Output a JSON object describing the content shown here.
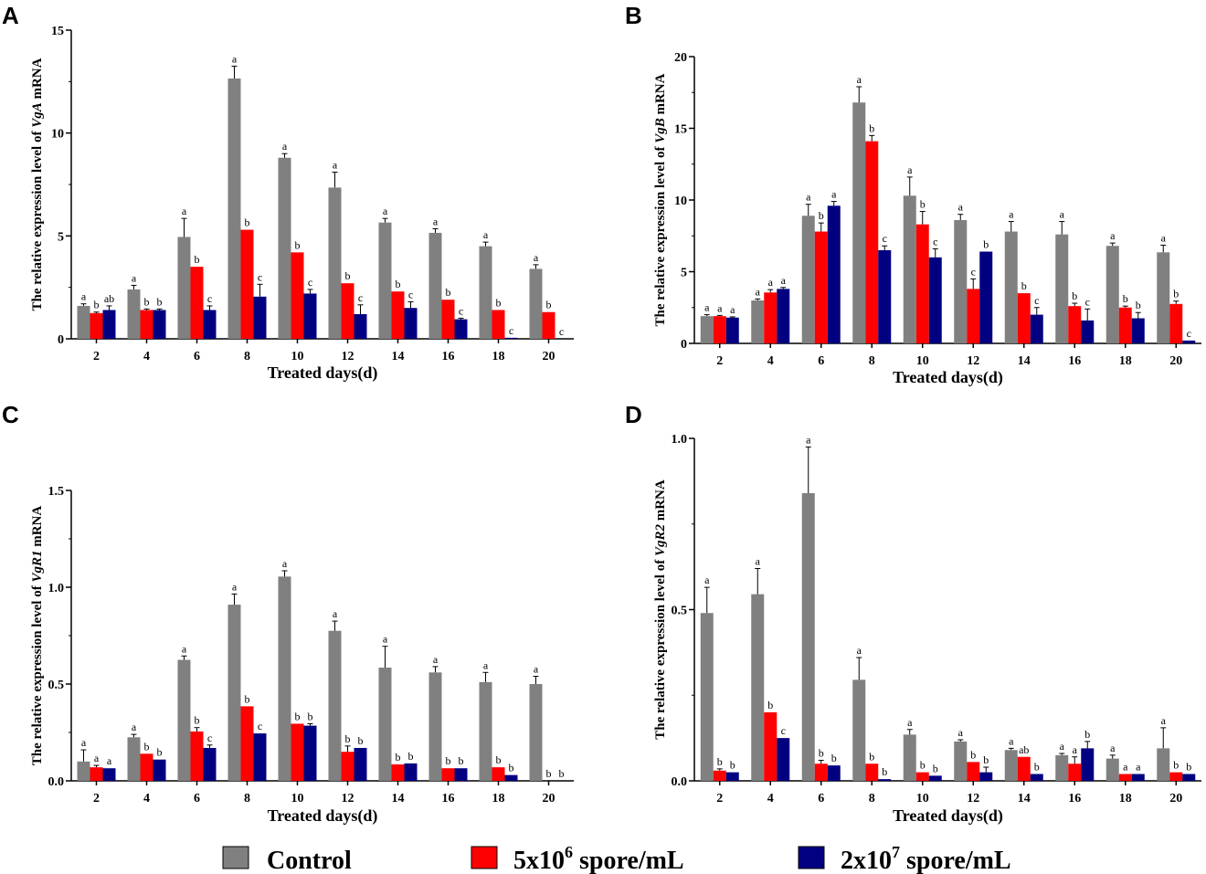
{
  "chart_data": [
    {
      "type": "bar",
      "panel": "A",
      "categories": [
        "2",
        "4",
        "6",
        "8",
        "10",
        "12",
        "14",
        "16",
        "18",
        "20"
      ],
      "xlabel": "Treated days(d)",
      "ylabel_prefix": "The relative expression level of ",
      "ylabel_gene": "VgA",
      "ylabel_suffix": " mRNA",
      "ylim": [
        0,
        15
      ],
      "yticks": [
        0,
        5,
        10,
        15
      ],
      "ytick_labels": [
        "0",
        "5",
        "10",
        "15"
      ],
      "series": [
        {
          "name": "Control",
          "values": [
            1.6,
            2.4,
            4.95,
            12.65,
            8.8,
            7.35,
            5.65,
            5.15,
            4.5,
            3.4
          ],
          "errors": [
            0.1,
            0.2,
            0.9,
            0.6,
            0.2,
            0.75,
            0.2,
            0.2,
            0.2,
            0.2
          ],
          "sig": [
            "a",
            "a",
            "a",
            "a",
            "a",
            "a",
            "a",
            "a",
            "a",
            "a"
          ]
        },
        {
          "name": "5x10^6 spore/mL",
          "values": [
            1.25,
            1.4,
            3.5,
            5.3,
            4.2,
            2.7,
            2.3,
            1.9,
            1.4,
            1.3
          ],
          "errors": [
            0.05,
            0.05,
            0.0,
            0.0,
            0.0,
            0.0,
            0.0,
            0.0,
            0.0,
            0.0
          ],
          "sig": [
            "b",
            "b",
            "b",
            "b",
            "b",
            "b",
            "b",
            "b",
            "b",
            "b"
          ]
        },
        {
          "name": "2x10^7 spore/mL",
          "values": [
            1.4,
            1.4,
            1.4,
            2.05,
            2.2,
            1.2,
            1.5,
            0.95,
            0.05,
            0.0
          ],
          "errors": [
            0.2,
            0.05,
            0.2,
            0.6,
            0.2,
            0.45,
            0.3,
            0.05,
            0.0,
            0.0
          ],
          "sig": [
            "ab",
            "b",
            "c",
            "c",
            "c",
            "c",
            "c",
            "c",
            "c",
            "c"
          ]
        }
      ]
    },
    {
      "type": "bar",
      "panel": "B",
      "categories": [
        "2",
        "4",
        "6",
        "8",
        "10",
        "12",
        "14",
        "16",
        "18",
        "20"
      ],
      "xlabel": "Treated days(d)",
      "ylabel_prefix": "The relative expression level of ",
      "ylabel_gene": "VgB",
      "ylabel_suffix": " mRNA",
      "ylim": [
        0,
        20
      ],
      "yticks": [
        0,
        5,
        10,
        15,
        20
      ],
      "ytick_labels": [
        "0",
        "5",
        "10",
        "15",
        "20"
      ],
      "series": [
        {
          "name": "Control",
          "values": [
            1.9,
            3.0,
            8.9,
            16.8,
            10.3,
            8.6,
            7.8,
            7.6,
            6.8,
            6.35
          ],
          "errors": [
            0.1,
            0.1,
            0.8,
            1.1,
            1.3,
            0.4,
            0.7,
            0.9,
            0.2,
            0.5
          ],
          "sig": [
            "a",
            "a",
            "a",
            "a",
            "a",
            "a",
            "a",
            "a",
            "a",
            "a"
          ]
        },
        {
          "name": "5x10^6 spore/mL",
          "values": [
            1.9,
            3.55,
            7.8,
            14.1,
            8.3,
            3.8,
            3.5,
            2.6,
            2.5,
            2.75
          ],
          "errors": [
            0.05,
            0.2,
            0.6,
            0.4,
            0.9,
            0.7,
            0.0,
            0.2,
            0.1,
            0.2
          ],
          "sig": [
            "a",
            "a",
            "b",
            "b",
            "b",
            "c",
            "b",
            "b",
            "b",
            "b"
          ]
        },
        {
          "name": "2x10^7 spore/mL",
          "values": [
            1.8,
            3.8,
            9.6,
            6.5,
            6.0,
            6.4,
            2.0,
            1.6,
            1.75,
            0.2
          ],
          "errors": [
            0.05,
            0.1,
            0.3,
            0.3,
            0.6,
            0.0,
            0.5,
            0.8,
            0.4,
            0.0
          ],
          "sig": [
            "a",
            "a",
            "a",
            "c",
            "c",
            "b",
            "c",
            "c",
            "b",
            "c"
          ]
        }
      ]
    },
    {
      "type": "bar",
      "panel": "C",
      "categories": [
        "2",
        "4",
        "6",
        "8",
        "10",
        "12",
        "14",
        "16",
        "18",
        "20"
      ],
      "xlabel": "Treated days(d)",
      "ylabel_prefix": "The relative expression level of ",
      "ylabel_gene": "VgR1",
      "ylabel_suffix": " mRNA",
      "ylim": [
        0,
        1.5
      ],
      "yticks": [
        0,
        0.5,
        1.0,
        1.5
      ],
      "ytick_labels": [
        "0.0",
        "0.5",
        "1.0",
        "1.5"
      ],
      "series": [
        {
          "name": "Control",
          "values": [
            0.1,
            0.225,
            0.625,
            0.91,
            1.055,
            0.775,
            0.585,
            0.56,
            0.51,
            0.5
          ],
          "errors": [
            0.06,
            0.015,
            0.02,
            0.055,
            0.03,
            0.05,
            0.11,
            0.03,
            0.05,
            0.04
          ],
          "sig": [
            "a",
            "a",
            "a",
            "a",
            "a",
            "a",
            "a",
            "a",
            "a",
            "a"
          ]
        },
        {
          "name": "5x10^6 spore/mL",
          "values": [
            0.07,
            0.14,
            0.255,
            0.385,
            0.295,
            0.15,
            0.085,
            0.065,
            0.07,
            0.0
          ],
          "errors": [
            0.01,
            0.0,
            0.02,
            0.0,
            0.0,
            0.03,
            0.0,
            0.0,
            0.0,
            0.0
          ],
          "sig": [
            "a",
            "b",
            "b",
            "b",
            "b",
            "b",
            "b",
            "b",
            "b",
            "b"
          ]
        },
        {
          "name": "2x10^7 spore/mL",
          "values": [
            0.065,
            0.11,
            0.17,
            0.245,
            0.285,
            0.17,
            0.09,
            0.065,
            0.03,
            0.0
          ],
          "errors": [
            0.0,
            0.0,
            0.015,
            0.0,
            0.01,
            0.0,
            0.0,
            0.0,
            0.0,
            0.0
          ],
          "sig": [
            "a",
            "b",
            "c",
            "c",
            "b",
            "b",
            "b",
            "b",
            "b",
            "b"
          ]
        }
      ]
    },
    {
      "type": "bar",
      "panel": "D",
      "categories": [
        "2",
        "4",
        "6",
        "8",
        "10",
        "12",
        "14",
        "16",
        "18",
        "20"
      ],
      "xlabel": "Treated days(d)",
      "ylabel_prefix": "The relative expression level of ",
      "ylabel_gene": "VgR2",
      "ylabel_suffix": " mRNA",
      "ylim": [
        0,
        1.0
      ],
      "yticks": [
        0,
        0.5,
        1.0
      ],
      "ytick_labels": [
        "0.0",
        "0.5",
        "1.0"
      ],
      "series": [
        {
          "name": "Control",
          "values": [
            0.49,
            0.545,
            0.84,
            0.295,
            0.135,
            0.115,
            0.09,
            0.075,
            0.065,
            0.095
          ],
          "errors": [
            0.075,
            0.075,
            0.135,
            0.065,
            0.015,
            0.005,
            0.005,
            0.005,
            0.01,
            0.06
          ],
          "sig": [
            "a",
            "a",
            "a",
            "a",
            "a",
            "a",
            "a",
            "a",
            "a",
            "a"
          ]
        },
        {
          "name": "5x10^6 spore/mL",
          "values": [
            0.03,
            0.2,
            0.05,
            0.05,
            0.025,
            0.055,
            0.07,
            0.05,
            0.02,
            0.025
          ],
          "errors": [
            0.005,
            0.0,
            0.01,
            0.0,
            0.0,
            0.0,
            0.0,
            0.02,
            0.0,
            0.0
          ],
          "sig": [
            "b",
            "b",
            "b",
            "b",
            "b",
            "b",
            "ab",
            "a",
            "a",
            "b"
          ]
        },
        {
          "name": "2x10^7 spore/mL",
          "values": [
            0.025,
            0.125,
            0.045,
            0.005,
            0.015,
            0.025,
            0.02,
            0.095,
            0.02,
            0.02
          ],
          "errors": [
            0.0,
            0.0,
            0.0,
            0.0,
            0.0,
            0.015,
            0.0,
            0.02,
            0.0,
            0.0
          ],
          "sig": [
            "b",
            "c",
            "b",
            "b",
            "b",
            "b",
            "b",
            "b",
            "a",
            "b"
          ]
        }
      ]
    }
  ],
  "legend": {
    "items": [
      {
        "label": "Control",
        "label_main": "Control",
        "label_sup": "",
        "label_tail": "",
        "color": "#808080"
      },
      {
        "label": "5x10^6 spore/mL",
        "label_main": "5x10",
        "label_sup": "6",
        "label_tail": " spore/mL",
        "color": "#ff0000"
      },
      {
        "label": "2x10^7 spore/mL",
        "label_main": "2x10",
        "label_sup": "7",
        "label_tail": " spore/mL",
        "color": "#000080"
      }
    ]
  },
  "colors": {
    "control": "#808080",
    "low": "#ff0000",
    "high": "#000080"
  }
}
